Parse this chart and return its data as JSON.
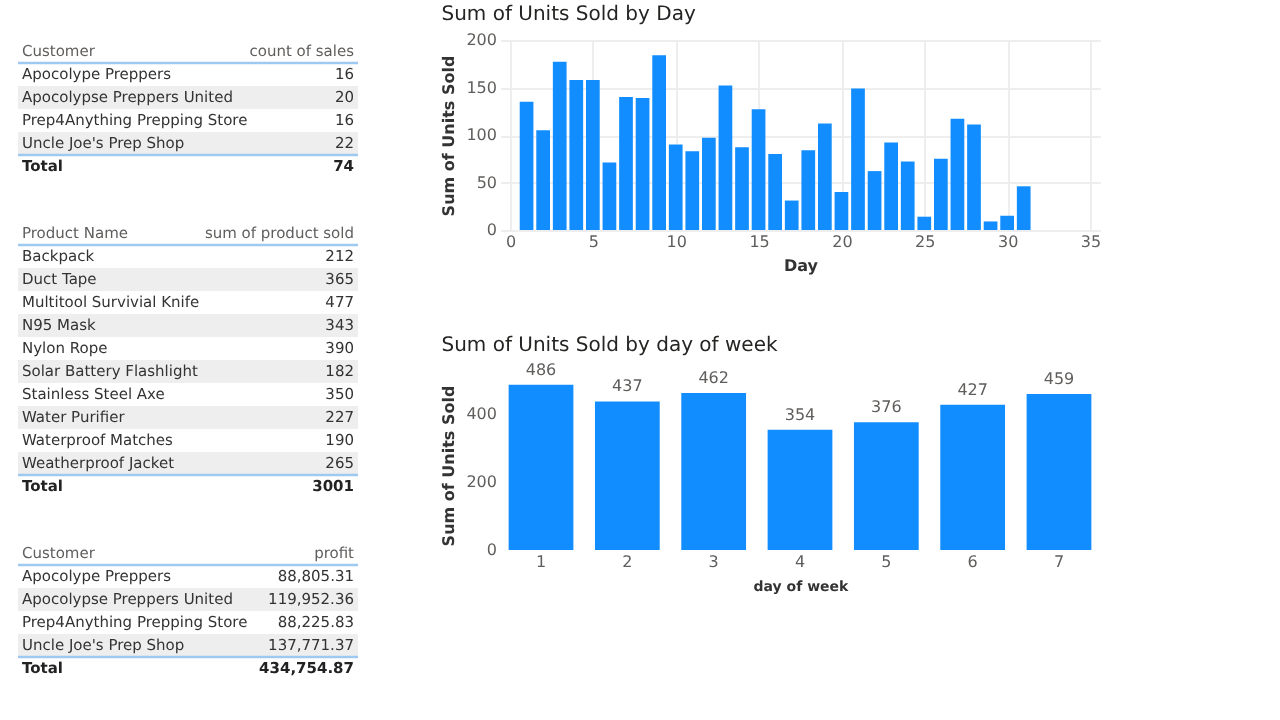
{
  "chart_data": [
    {
      "type": "other",
      "xlabel": "Customer",
      "ylabel": "count of sales",
      "data_labels": true,
      "categories": [
        "Apocolype Preppers",
        "Apocolypse Preppers United",
        "Prep4Anything Prepping Store",
        "Uncle Joe's Prep Shop"
      ],
      "values": [
        16,
        20,
        16,
        22
      ],
      "annotations": [
        "Total",
        "74"
      ]
    },
    {
      "type": "other",
      "xlabel": "Product Name",
      "ylabel": "sum of product sold",
      "data_labels": true,
      "categories": [
        "Backpack",
        "Duct Tape",
        "Multitool Survivial Knife",
        "N95 Mask",
        "Nylon Rope",
        "Solar Battery Flashlight",
        "Stainless Steel Axe",
        "Water Purifier",
        "Waterproof Matches",
        "Weatherproof Jacket"
      ],
      "values": [
        212,
        365,
        477,
        343,
        390,
        182,
        350,
        227,
        190,
        265
      ],
      "annotations": [
        "Total",
        "3001"
      ]
    },
    {
      "type": "other",
      "xlabel": "Customer",
      "ylabel": "profit",
      "value_labels": [
        "88,805.31",
        "119,952.36",
        "88,225.83",
        "137,771.37"
      ],
      "categories": [
        "Apocolype Preppers",
        "Apocolypse Preppers United",
        "Prep4Anything Prepping Store",
        "Uncle Joe's Prep Shop"
      ],
      "values": [
        88805.31,
        119952.36,
        88225.83,
        137771.37
      ],
      "annotations": [
        "Total",
        "434,754.87"
      ]
    },
    {
      "type": "bar",
      "title": "Sum of Units Sold by Day",
      "xlabel": "Day",
      "ylabel": "Sum of Units Sold",
      "color": "#118dff",
      "x": [
        1,
        2,
        3,
        4,
        5,
        6,
        7,
        8,
        9,
        10,
        11,
        12,
        13,
        14,
        15,
        16,
        17,
        18,
        19,
        20,
        21,
        22,
        23,
        24,
        25,
        26,
        27,
        28,
        29,
        30,
        31
      ],
      "values": [
        135,
        105,
        177,
        158,
        158,
        71,
        140,
        139,
        184,
        90,
        83,
        97,
        152,
        87,
        127,
        80,
        31,
        84,
        112,
        40,
        149,
        62,
        92,
        72,
        14,
        75,
        117,
        111,
        9,
        15,
        46
      ],
      "xlim": [
        0,
        35
      ],
      "xticks": [
        0,
        5,
        10,
        15,
        20,
        25,
        30,
        35
      ],
      "ylim": [
        0,
        200
      ],
      "yticks": [
        0,
        50,
        100,
        150,
        200
      ],
      "grid": true
    },
    {
      "type": "bar",
      "title": "Sum of Units Sold by day of week",
      "xlabel": "day of week",
      "ylabel": "Sum of Units Sold",
      "color": "#118dff",
      "categories": [
        "1",
        "2",
        "3",
        "4",
        "5",
        "6",
        "7"
      ],
      "values": [
        486,
        437,
        462,
        354,
        376,
        427,
        459
      ],
      "ylim": [
        0,
        500
      ],
      "yticks": [
        0,
        200,
        400
      ],
      "data_labels": true
    }
  ]
}
